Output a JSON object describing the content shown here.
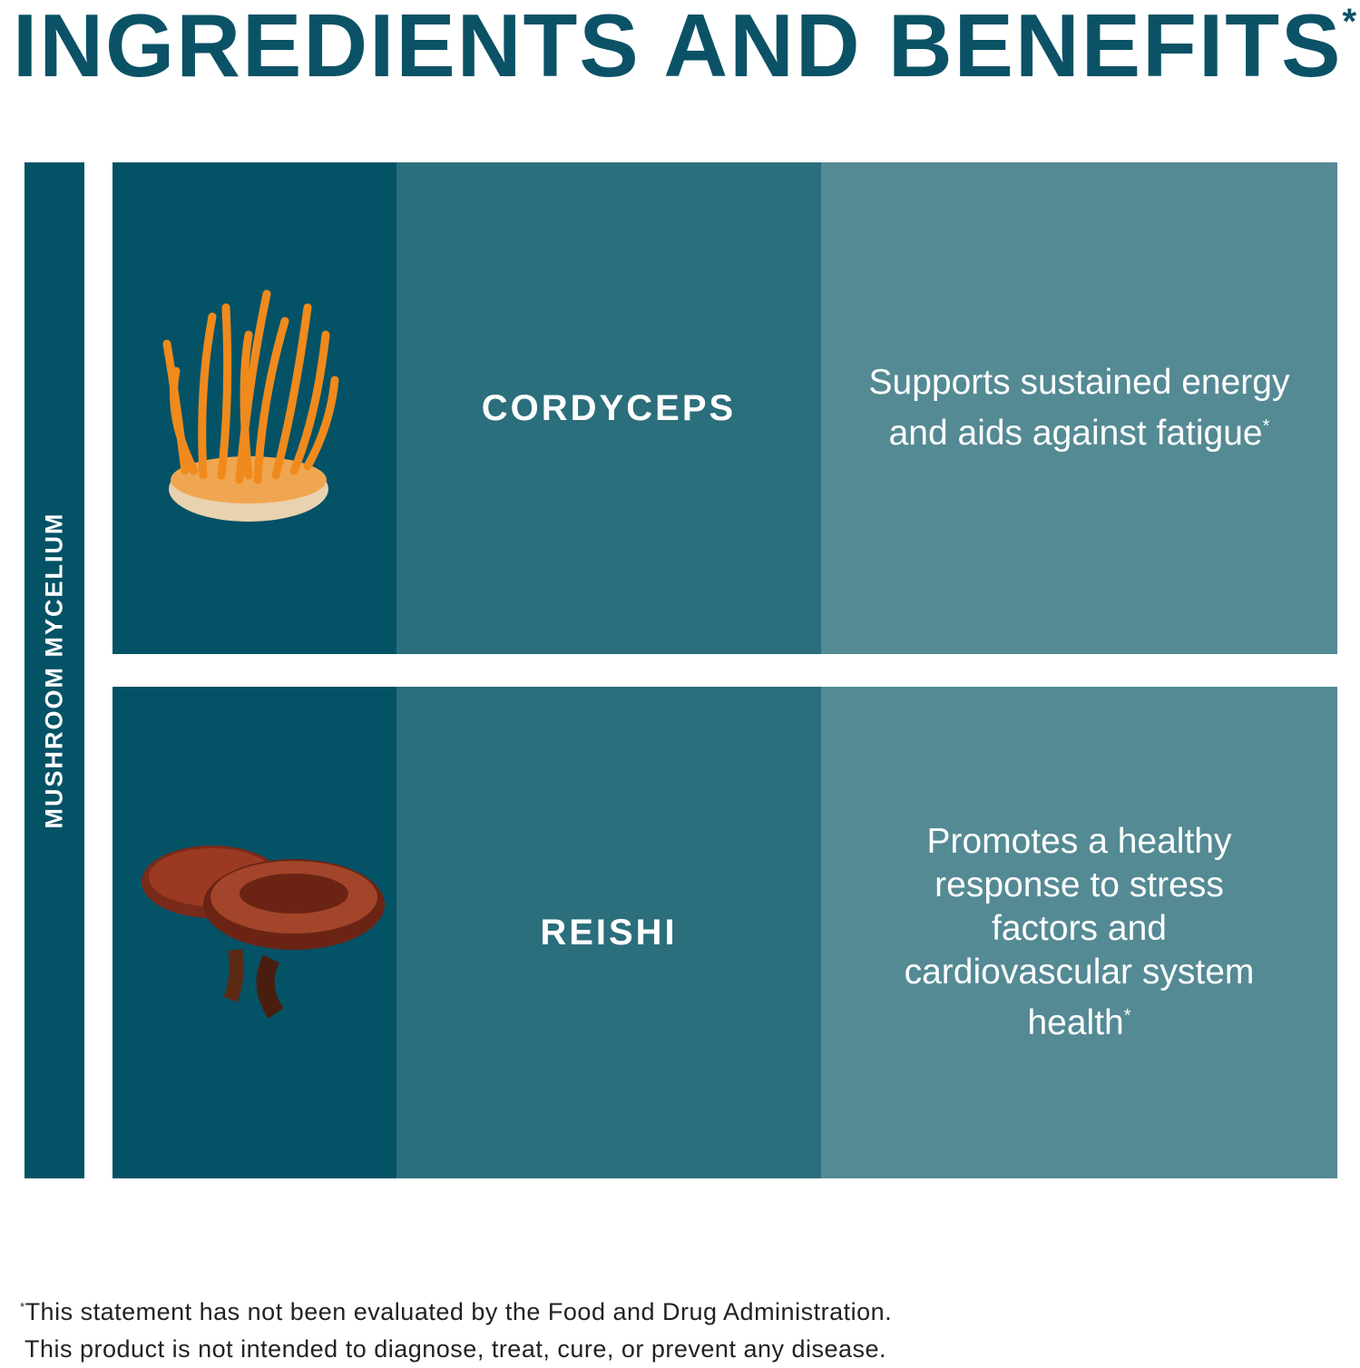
{
  "title": "INGREDIENTS AND BENEFITS",
  "title_mark": "*",
  "category": "MUSHROOM MYCELIUM",
  "ingredients": [
    {
      "name": "CORDYCEPS",
      "benefit": "Supports sustained energy and aids against fatigue",
      "mark": "*",
      "image": "cordyceps-mushroom"
    },
    {
      "name": "REISHI",
      "benefit": "Promotes a healthy response to stress factors and cardiovascular system health",
      "mark": "*",
      "image": "reishi-mushroom"
    }
  ],
  "footer": {
    "mark": "*",
    "line1": "This statement has not been evaluated by the Food and Drug Administration.",
    "line2": "This product is not intended to diagnose, treat, cure, or prevent any disease."
  },
  "colors": {
    "title": "#0b5266",
    "col1": "#045266",
    "col2": "#2b6e7c",
    "col3": "#548a94"
  }
}
